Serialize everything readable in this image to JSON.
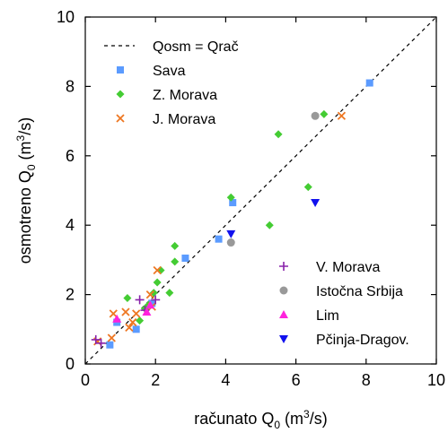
{
  "chart_data": {
    "type": "scatter",
    "xlabel": {
      "main": "računato Q",
      "sub": "0",
      "unit_pre": " (m",
      "unit_sup": "3",
      "unit_post": "/s)"
    },
    "ylabel": {
      "main": "osmotreno Q",
      "sub": "0",
      "unit_pre": " (m",
      "unit_sup": "3",
      "unit_post": "/s)"
    },
    "xlim": [
      0,
      10
    ],
    "ylim": [
      0,
      10
    ],
    "xticks": [
      "0",
      "2",
      "4",
      "6",
      "8",
      "10"
    ],
    "yticks": [
      "0",
      "2",
      "4",
      "6",
      "8",
      "10"
    ],
    "grid": false,
    "reference_line": {
      "name": "Qosm = Qrač",
      "points": [
        [
          0,
          0
        ],
        [
          10,
          10
        ]
      ],
      "style": "dashed"
    },
    "legend_groups": [
      {
        "placement": "top-left",
        "entries": [
          "Qosm = Qrač",
          "Sava",
          "Z. Morava",
          "J. Morava"
        ]
      },
      {
        "placement": "bottom-right",
        "entries": [
          "V. Morava",
          "Istočna Srbija",
          "Lim",
          "Pčinja-Dragov."
        ]
      }
    ],
    "series": [
      {
        "name": "Sava",
        "marker": "square",
        "color": "#5b9bff",
        "points": [
          [
            0.7,
            0.55
          ],
          [
            0.9,
            1.2
          ],
          [
            1.45,
            1.0
          ],
          [
            1.9,
            1.75
          ],
          [
            2.85,
            3.05
          ],
          [
            3.8,
            3.6
          ],
          [
            4.2,
            4.65
          ],
          [
            8.1,
            8.1
          ]
        ]
      },
      {
        "name": "Z. Morava",
        "marker": "diamond",
        "color": "#44cc33",
        "points": [
          [
            1.2,
            1.9
          ],
          [
            1.55,
            1.25
          ],
          [
            1.7,
            1.6
          ],
          [
            1.8,
            1.7
          ],
          [
            1.95,
            2.05
          ],
          [
            2.05,
            2.35
          ],
          [
            2.15,
            2.7
          ],
          [
            2.4,
            2.05
          ],
          [
            2.55,
            2.95
          ],
          [
            2.55,
            3.4
          ],
          [
            4.15,
            4.8
          ],
          [
            5.25,
            4.0
          ],
          [
            5.5,
            6.62
          ],
          [
            6.35,
            5.1
          ],
          [
            6.8,
            7.2
          ]
        ]
      },
      {
        "name": "J. Morava",
        "marker": "x",
        "color": "#ee7722",
        "points": [
          [
            0.35,
            0.65
          ],
          [
            0.75,
            0.75
          ],
          [
            0.8,
            1.45
          ],
          [
            1.15,
            1.5
          ],
          [
            1.25,
            1.05
          ],
          [
            1.35,
            1.2
          ],
          [
            1.45,
            1.45
          ],
          [
            1.85,
            2.0
          ],
          [
            1.9,
            1.65
          ],
          [
            2.05,
            2.7
          ],
          [
            7.3,
            7.15
          ]
        ]
      },
      {
        "name": "V. Morava",
        "marker": "plus",
        "color": "#8822aa",
        "points": [
          [
            0.3,
            0.7
          ],
          [
            0.45,
            0.6
          ],
          [
            1.55,
            1.85
          ],
          [
            2.0,
            1.85
          ],
          [
            1.7,
            1.55
          ]
        ]
      },
      {
        "name": "Istočna Srbija",
        "marker": "circle",
        "color": "#999999",
        "points": [
          [
            4.15,
            3.5
          ],
          [
            6.55,
            7.15
          ]
        ]
      },
      {
        "name": "Lim",
        "marker": "triangle-up",
        "color": "#ff22dd",
        "points": [
          [
            0.9,
            1.3
          ],
          [
            1.75,
            1.5
          ],
          [
            1.85,
            1.7
          ]
        ]
      },
      {
        "name": "Pčinja-Dragov.",
        "marker": "triangle-down",
        "color": "#1111ee",
        "points": [
          [
            4.15,
            3.75
          ],
          [
            6.55,
            4.65
          ]
        ]
      }
    ]
  }
}
